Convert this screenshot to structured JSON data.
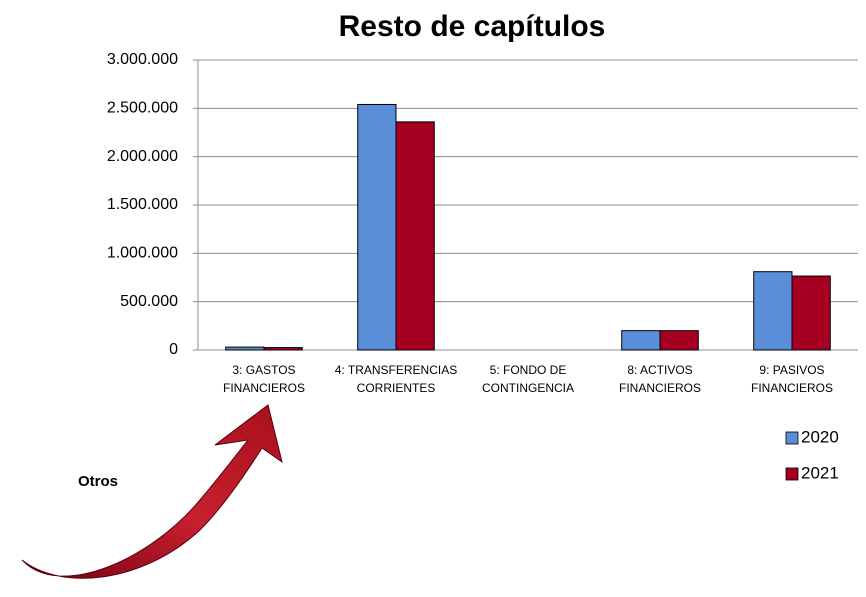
{
  "chart_data": {
    "type": "bar",
    "title": "Resto de capítulos",
    "annotation": "Otros",
    "categories": [
      "3: GASTOS FINANCIEROS",
      "4: TRANSFERENCIAS CORRIENTES",
      "5: FONDO DE CONTINGENCIA",
      "8: ACTIVOS FINANCIEROS",
      "9: PASIVOS FINANCIEROS"
    ],
    "series": [
      {
        "name": "2020",
        "color": "#5a8ed8",
        "values": [
          30000,
          2540000,
          0,
          200000,
          810000
        ]
      },
      {
        "name": "2021",
        "color": "#a50021",
        "values": [
          25000,
          2360000,
          0,
          200000,
          765000
        ]
      }
    ],
    "ylim": [
      0,
      3000000
    ],
    "yticks": [
      0,
      {
        "value": 500000,
        "label": "500.000"
      },
      {
        "value": 1000000,
        "label": "1.000.000"
      },
      {
        "value": 1500000,
        "label": "1.500.000"
      },
      {
        "value": 2000000,
        "label": "2.000.000"
      },
      {
        "value": 2500000,
        "label": "2.500.000"
      },
      {
        "value": 3000000,
        "label": "3.000.000"
      }
    ],
    "grid": true,
    "legend": "bottom-right"
  }
}
